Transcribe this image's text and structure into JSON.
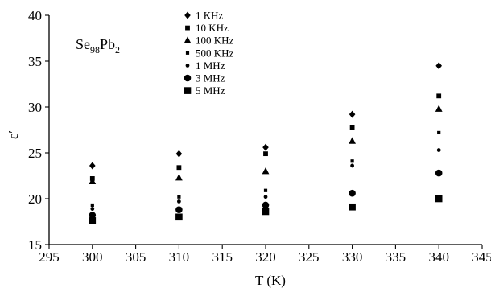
{
  "chart_data": {
    "type": "scatter",
    "xlabel": "T (K)",
    "ylabel": "ε′",
    "xlim": [
      295,
      345
    ],
    "ylim": [
      15,
      40
    ],
    "xticks": [
      295,
      300,
      305,
      310,
      315,
      320,
      325,
      330,
      335,
      340,
      345
    ],
    "yticks": [
      15,
      20,
      25,
      30,
      35,
      40
    ],
    "grid": false,
    "legend_position": "top-center",
    "annotation": {
      "base1": "Se",
      "sub1": "98",
      "base2": "Pb",
      "sub2": "2"
    },
    "x": [
      300,
      310,
      320,
      330,
      340
    ],
    "series": [
      {
        "name": "1 KHz",
        "marker": "diamond",
        "values": [
          23.6,
          24.9,
          25.6,
          29.2,
          34.5
        ]
      },
      {
        "name": "10 KHz",
        "marker": "square-small",
        "values": [
          22.2,
          23.4,
          24.9,
          27.8,
          31.2
        ]
      },
      {
        "name": "100 KHz",
        "marker": "triangle",
        "values": [
          21.9,
          22.3,
          23.0,
          26.3,
          29.8
        ]
      },
      {
        "name": "500 KHz",
        "marker": "square-tiny",
        "values": [
          19.3,
          20.2,
          20.9,
          24.1,
          27.2
        ]
      },
      {
        "name": "1 MHz",
        "marker": "dot",
        "values": [
          18.9,
          19.7,
          20.2,
          23.6,
          25.3
        ]
      },
      {
        "name": "3 MHz",
        "marker": "circle",
        "values": [
          18.2,
          18.8,
          19.3,
          20.6,
          22.8
        ]
      },
      {
        "name": "5 MHz",
        "marker": "square",
        "values": [
          17.6,
          18.0,
          18.6,
          19.1,
          20.0
        ]
      }
    ]
  }
}
